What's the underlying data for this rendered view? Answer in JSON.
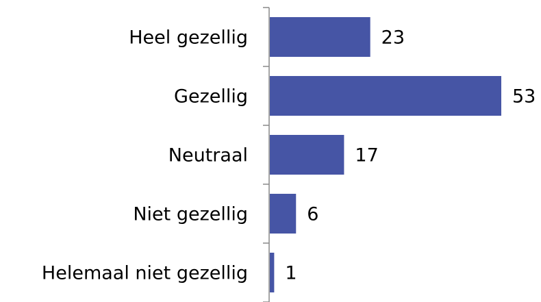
{
  "chart_data": {
    "type": "bar",
    "orientation": "horizontal",
    "categories": [
      "Heel gezellig",
      "Gezellig",
      "Neutraal",
      "Niet gezellig",
      "Helemaal niet gezellig"
    ],
    "values": [
      23,
      53,
      17,
      6,
      1
    ],
    "color": "#4655a5"
  }
}
